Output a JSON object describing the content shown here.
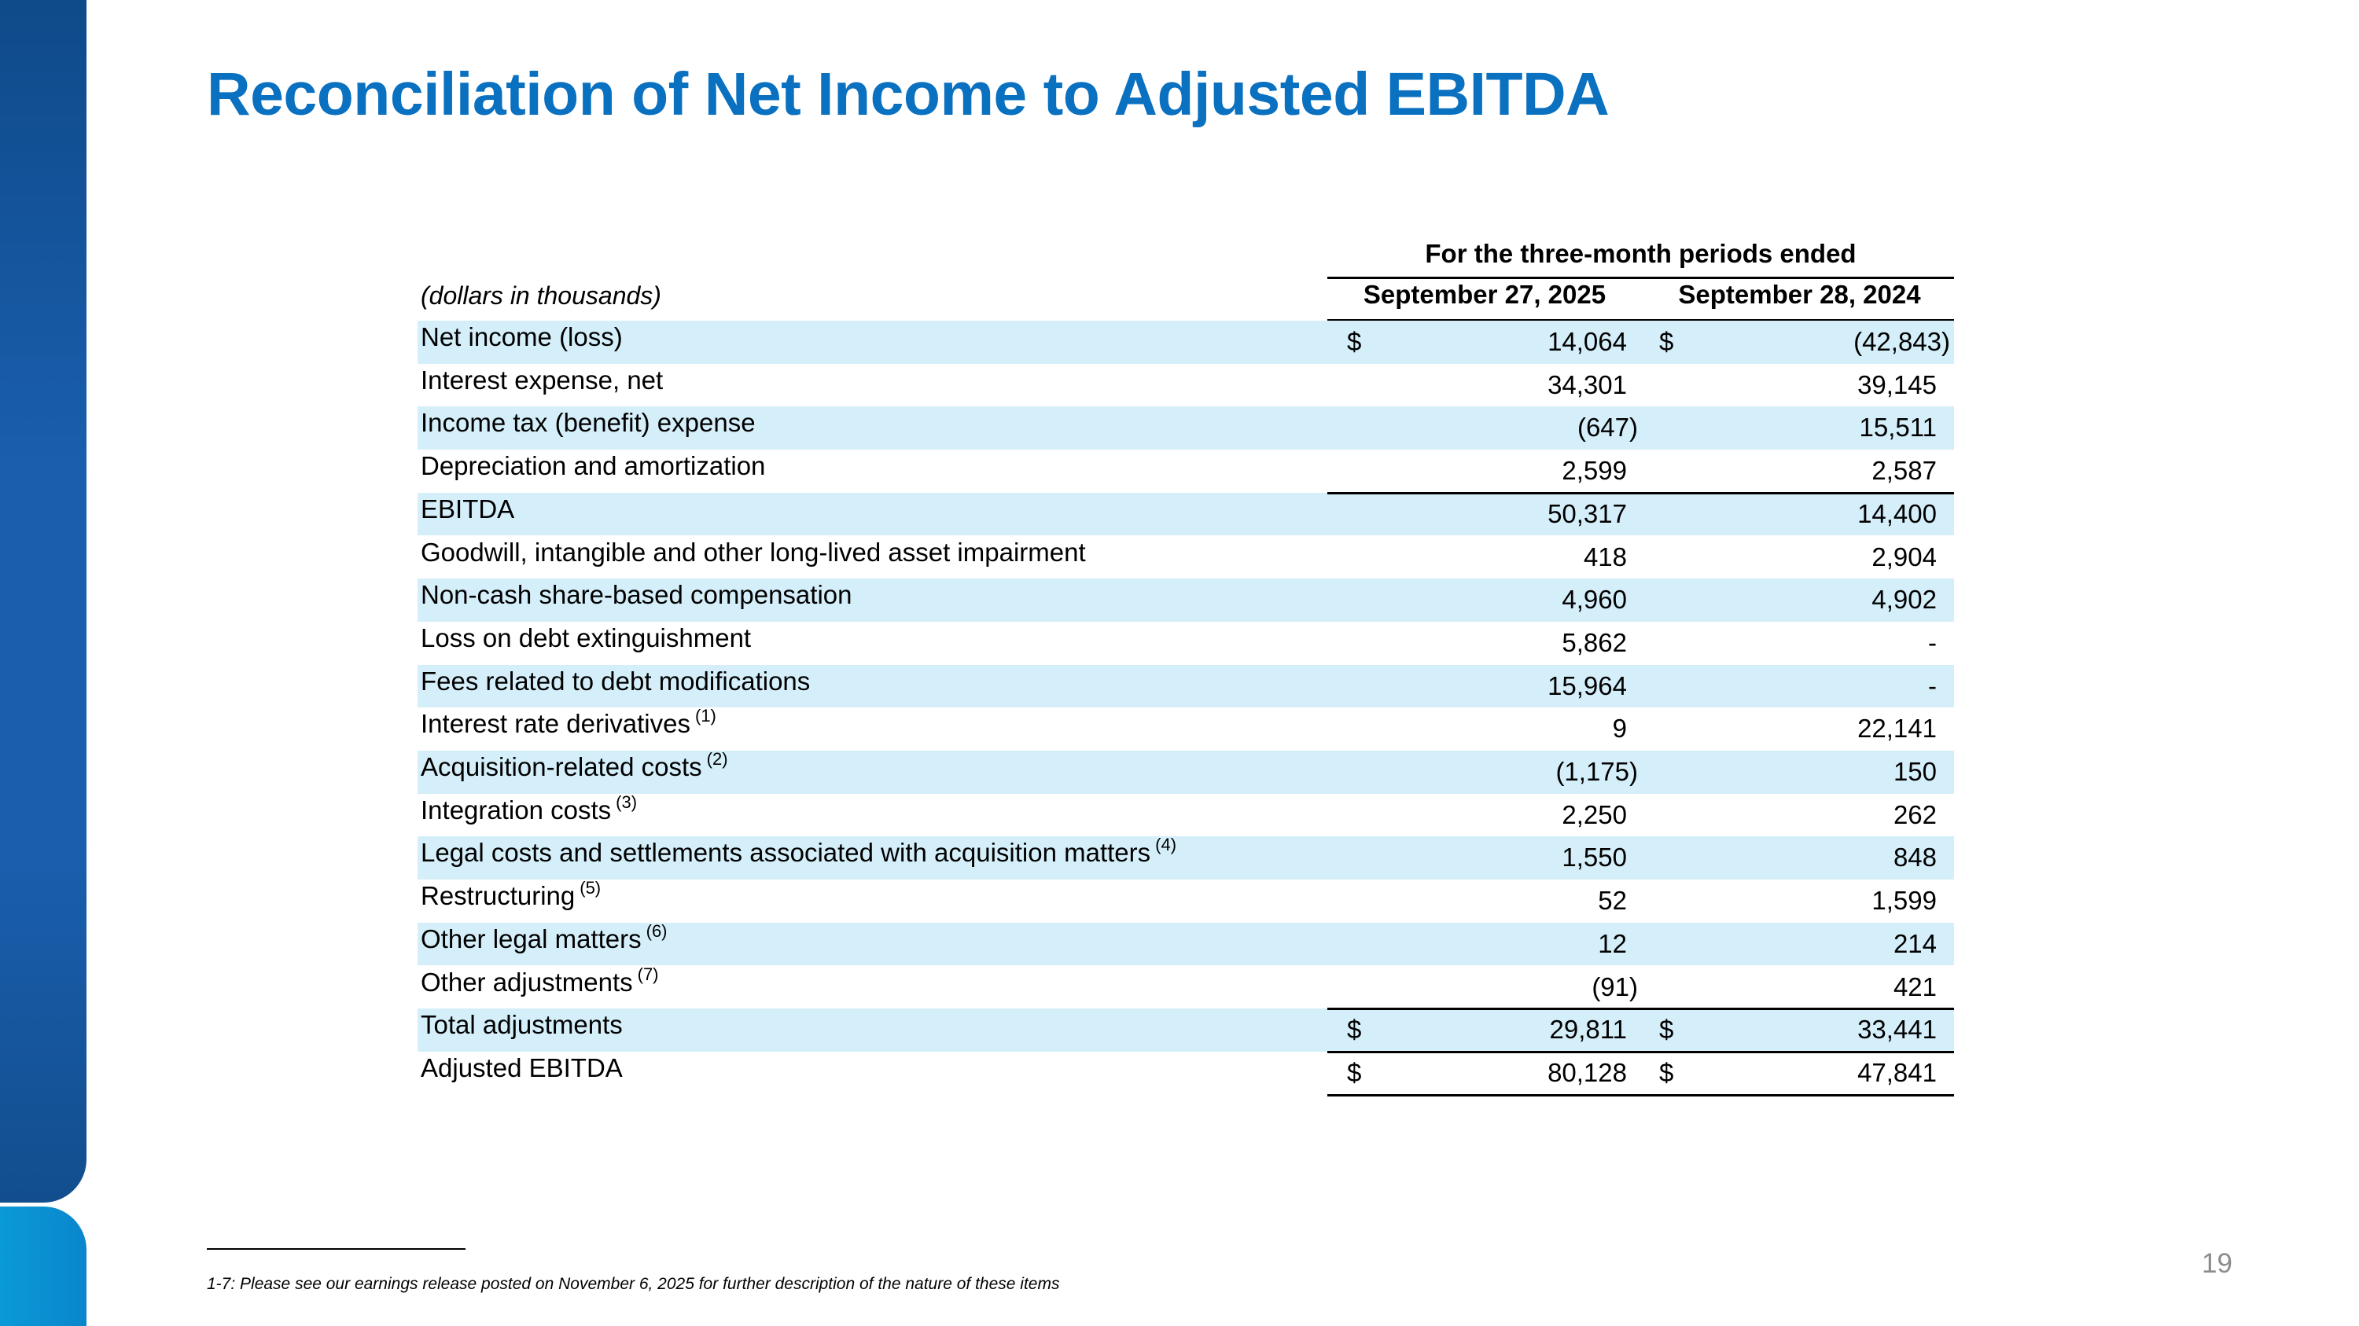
{
  "title": "Reconciliation of Net Income to Adjusted EBITDA",
  "table": {
    "group_header": "For the three-month periods ended",
    "units_label": "(dollars in thousands)",
    "columns": [
      "September 27, 2025",
      "September 28, 2024"
    ],
    "rows": [
      {
        "label": "Net income (loss)",
        "note": "",
        "v1": "14,064",
        "v2": "(42,843)",
        "dollar": true
      },
      {
        "label": "Interest expense, net",
        "note": "",
        "v1": "34,301",
        "v2": "39,145"
      },
      {
        "label": "Income tax (benefit) expense",
        "note": "",
        "v1": "(647)",
        "v2": "15,511"
      },
      {
        "label": "Depreciation and amortization",
        "note": "",
        "v1": "2,599",
        "v2": "2,587"
      },
      {
        "label": "EBITDA",
        "note": "",
        "v1": "50,317",
        "v2": "14,400",
        "rule_above": true
      },
      {
        "label": "Goodwill, intangible and other long-lived asset impairment",
        "note": "",
        "v1": "418",
        "v2": "2,904"
      },
      {
        "label": "Non-cash share-based compensation",
        "note": "",
        "v1": "4,960",
        "v2": "4,902"
      },
      {
        "label": "Loss on debt extinguishment",
        "note": "",
        "v1": "5,862",
        "v2": "-"
      },
      {
        "label": "Fees related to debt modifications",
        "note": "",
        "v1": "15,964",
        "v2": "-"
      },
      {
        "label": "Interest rate derivatives",
        "note": "(1)",
        "v1": "9",
        "v2": "22,141"
      },
      {
        "label": "Acquisition-related costs",
        "note": "(2)",
        "v1": "(1,175)",
        "v2": "150"
      },
      {
        "label": "Integration costs",
        "note": "(3)",
        "v1": "2,250",
        "v2": "262"
      },
      {
        "label": "Legal costs and settlements associated with acquisition matters",
        "note": "(4)",
        "v1": "1,550",
        "v2": "848"
      },
      {
        "label": "Restructuring",
        "note": "(5)",
        "v1": "52",
        "v2": "1,599"
      },
      {
        "label": "Other legal matters",
        "note": "(6)",
        "v1": "12",
        "v2": "214"
      },
      {
        "label": "Other adjustments",
        "note": "(7)",
        "v1": "(91)",
        "v2": "421"
      },
      {
        "label": "Total adjustments",
        "note": "",
        "v1": "29,811",
        "v2": "33,441",
        "dollar": true,
        "rule_above": true
      },
      {
        "label": "Adjusted EBITDA",
        "note": "",
        "v1": "80,128",
        "v2": "47,841",
        "dollar": true,
        "rule_above": true,
        "rule_below": true
      }
    ]
  },
  "currency_symbol": "$",
  "page_number": "19",
  "footnote": "1-7: Please see our earnings release posted on November 6, 2025 for further description of the nature of these items",
  "colors": {
    "title": "#0a70c0",
    "row_shade": "#d5effa"
  }
}
